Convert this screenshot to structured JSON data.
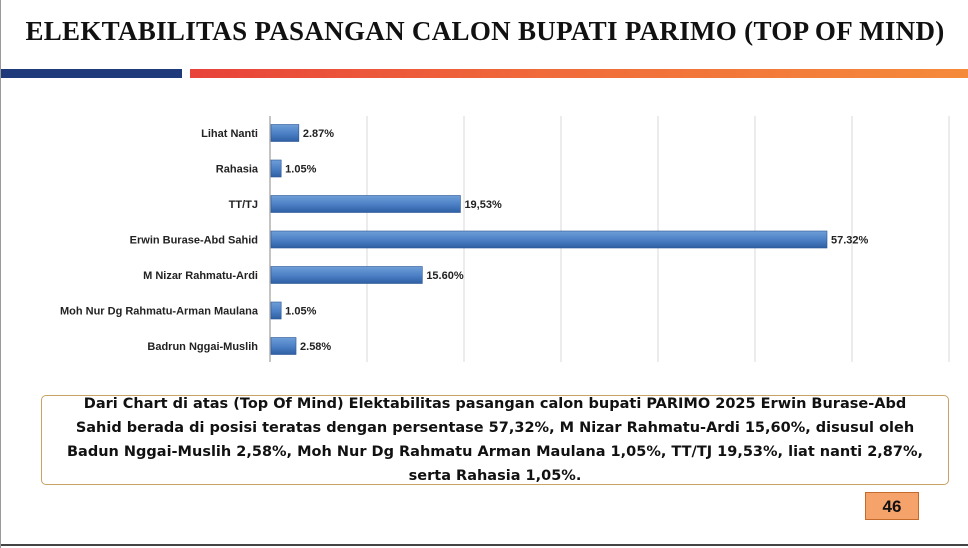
{
  "slide": {
    "title": "ELEKTABILITAS PASANGAN CALON BUPATI PARIMO (TOP OF MIND)",
    "summary": "Dari Chart di atas (Top Of Mind) Elektabilitas pasangan calon bupati PARIMO 2025  Erwin Burase-Abd Sahid berada di posisi teratas dengan persentase 57,32%, M Nizar Rahmatu-Ardi 15,60%, disusul oleh Badun Nggai-Muslih 2,58%, Moh Nur Dg Rahmatu Arman Maulana 1,05%, TT/TJ 19,53%, liat nanti 2,87%, serta Rahasia 1,05%.",
    "page_number": "46"
  },
  "colors": {
    "bar": "#4a7ec4",
    "bar_dark": "#2e5fa3",
    "grid": "#d9d9d9",
    "rule_navy": "#1f3a7a",
    "rule_orange": "#f06a3a",
    "badge": "#f5a26b"
  },
  "chart_data": {
    "type": "bar",
    "orientation": "horizontal",
    "title": "",
    "xlabel": "",
    "ylabel": "",
    "xlim": [
      0,
      70
    ],
    "grid": true,
    "legend": "none",
    "categories": [
      "Lihat Nanti",
      "Rahasia",
      "TT/TJ",
      "Erwin Burase-Abd Sahid",
      "M Nizar Rahmatu-Ardi",
      "Moh Nur Dg Rahmatu-Arman Maulana",
      "Badrun Nggai-Muslih"
    ],
    "values": [
      2.87,
      1.05,
      19.53,
      57.32,
      15.6,
      1.05,
      2.58
    ],
    "data_labels": [
      "2.87%",
      "1.05%",
      "19,53%",
      "57.32%",
      "15.60%",
      "1.05%",
      "2.58%"
    ]
  }
}
